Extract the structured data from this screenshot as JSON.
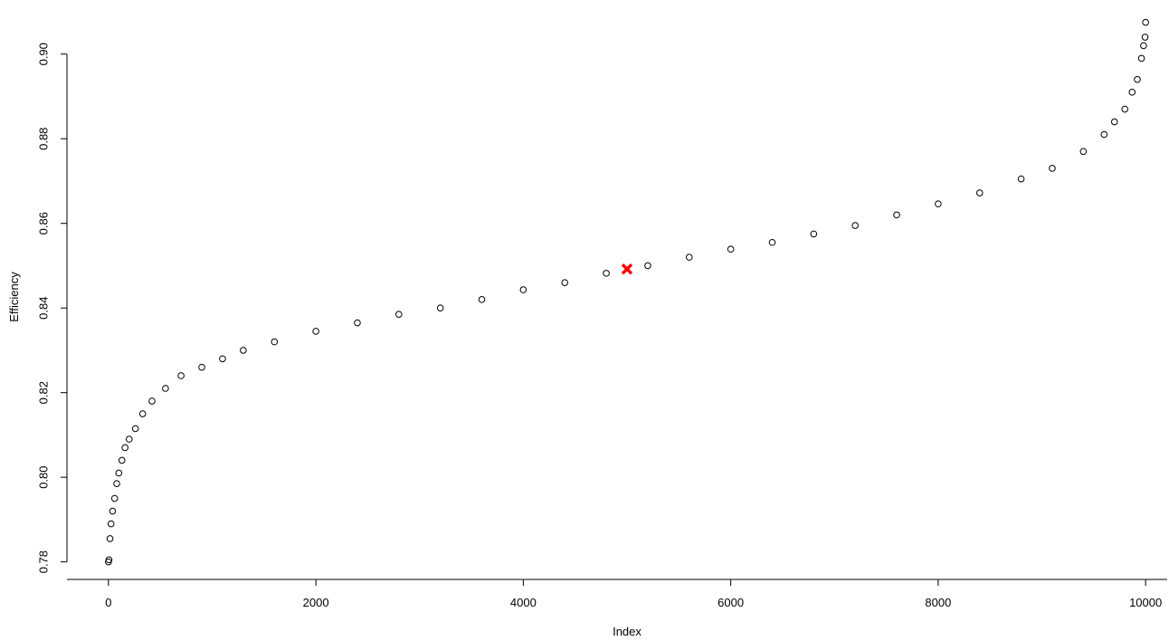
{
  "chart_data": {
    "type": "scatter",
    "xlabel": "Index",
    "ylabel": "Efficiency",
    "xlim": [
      -400,
      10400
    ],
    "ylim": [
      0.775,
      0.913
    ],
    "xticks": [
      0,
      2000,
      4000,
      6000,
      8000,
      10000
    ],
    "yticks": [
      0.78,
      {
        "value": 0.8,
        "label": "0.80"
      },
      0.82,
      0.84,
      0.86,
      0.88,
      {
        "value": 0.9,
        "label": "0.90"
      }
    ],
    "series": [
      {
        "color": "#000000",
        "marker": "circle",
        "x": [
          0,
          5,
          15,
          25,
          40,
          60,
          80,
          100,
          130,
          160,
          200,
          260,
          330,
          420,
          550,
          700,
          900,
          1100,
          1300,
          1600,
          2000,
          2400,
          2800,
          3200,
          3600,
          4000,
          4400,
          4800,
          5200,
          5600,
          6000,
          6400,
          6800,
          7200,
          7600,
          8000,
          8400,
          8800,
          9100,
          9400,
          9600,
          9700,
          9800,
          9870,
          9920,
          9960,
          9980,
          9995,
          10000
        ],
        "values": [
          0.78,
          0.7805,
          0.7855,
          0.789,
          0.792,
          0.795,
          0.7985,
          0.801,
          0.804,
          0.807,
          0.809,
          0.8115,
          0.815,
          0.818,
          0.821,
          0.824,
          0.826,
          0.828,
          0.83,
          0.832,
          0.8345,
          0.8365,
          0.8385,
          0.84,
          0.842,
          0.8443,
          0.846,
          0.8482,
          0.85,
          0.852,
          0.8539,
          0.8555,
          0.8575,
          0.8595,
          0.862,
          0.8646,
          0.8672,
          0.8705,
          0.873,
          0.877,
          0.881,
          0.884,
          0.887,
          0.891,
          0.894,
          0.899,
          0.902,
          0.904,
          0.9075
        ]
      },
      {
        "color": "#ff0000",
        "marker": "x",
        "x": [
          5000
        ],
        "values": [
          0.8492
        ]
      }
    ]
  }
}
